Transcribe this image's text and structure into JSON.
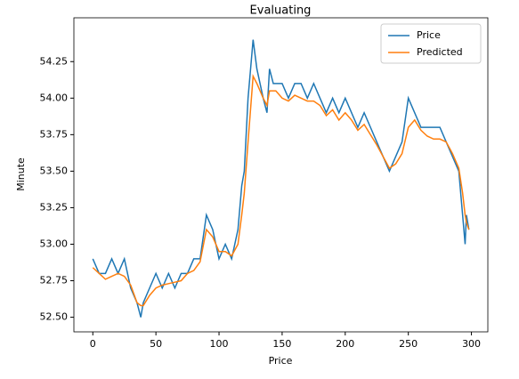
{
  "chart_data": {
    "type": "line",
    "title": "Evaluating",
    "x_label": "Price",
    "y_label": "Minute",
    "x": [
      0,
      5,
      10,
      15,
      20,
      25,
      30,
      35,
      38,
      40,
      45,
      50,
      55,
      60,
      65,
      70,
      75,
      80,
      85,
      90,
      95,
      100,
      105,
      110,
      115,
      118,
      120,
      123,
      127,
      130,
      135,
      138,
      140,
      143,
      145,
      150,
      155,
      160,
      165,
      170,
      175,
      180,
      185,
      190,
      195,
      200,
      205,
      210,
      215,
      220,
      225,
      230,
      235,
      240,
      245,
      250,
      255,
      260,
      265,
      270,
      275,
      280,
      285,
      290,
      293,
      295,
      296,
      298
    ],
    "series": [
      {
        "name": "Price",
        "color": "#1f77b4",
        "values": [
          52.9,
          52.8,
          52.8,
          52.9,
          52.8,
          52.9,
          52.7,
          52.6,
          52.5,
          52.6,
          52.7,
          52.8,
          52.7,
          52.8,
          52.7,
          52.8,
          52.8,
          52.9,
          52.9,
          53.2,
          53.1,
          52.9,
          53.0,
          52.9,
          53.1,
          53.4,
          53.5,
          54.0,
          54.4,
          54.2,
          54.0,
          53.9,
          54.2,
          54.1,
          54.1,
          54.1,
          54.0,
          54.1,
          54.1,
          54.0,
          54.1,
          54.0,
          53.9,
          54.0,
          53.9,
          54.0,
          53.9,
          53.8,
          53.9,
          53.8,
          53.7,
          53.6,
          53.5,
          53.6,
          53.7,
          54.0,
          53.9,
          53.8,
          53.8,
          53.8,
          53.8,
          53.7,
          53.6,
          53.5,
          53.2,
          53.0,
          53.2,
          53.1
        ]
      },
      {
        "name": "Predicted",
        "color": "#ff7f0e",
        "values": [
          52.84,
          52.8,
          52.76,
          52.78,
          52.8,
          52.78,
          52.72,
          52.6,
          52.58,
          52.58,
          52.65,
          52.7,
          52.72,
          52.73,
          52.74,
          52.75,
          52.8,
          52.82,
          52.88,
          53.1,
          53.05,
          52.95,
          52.95,
          52.92,
          53.0,
          53.2,
          53.35,
          53.7,
          54.15,
          54.1,
          54.0,
          53.95,
          54.05,
          54.05,
          54.05,
          54.0,
          53.98,
          54.02,
          54.0,
          53.98,
          53.98,
          53.95,
          53.88,
          53.92,
          53.85,
          53.9,
          53.85,
          53.78,
          53.82,
          53.75,
          53.68,
          53.6,
          53.52,
          53.55,
          53.62,
          53.8,
          53.85,
          53.78,
          53.74,
          53.72,
          53.72,
          53.7,
          53.62,
          53.52,
          53.35,
          53.2,
          53.15,
          53.1
        ]
      }
    ],
    "xlim": [
      -15,
      313
    ],
    "ylim": [
      52.4,
      54.55
    ],
    "xticks": [
      0,
      50,
      100,
      150,
      200,
      250,
      300
    ],
    "yticks": [
      {
        "value": 52.5,
        "label": "52.50"
      },
      {
        "value": 52.75,
        "label": "52.75"
      },
      {
        "value": 53,
        "label": "53.00"
      },
      {
        "value": 53.25,
        "label": "53.25"
      },
      {
        "value": 53.5,
        "label": "53.50"
      },
      {
        "value": 53.75,
        "label": "53.75"
      },
      {
        "value": 54,
        "label": "54.00"
      },
      {
        "value": 54.25,
        "label": "54.25"
      }
    ],
    "legend": "upper right"
  }
}
